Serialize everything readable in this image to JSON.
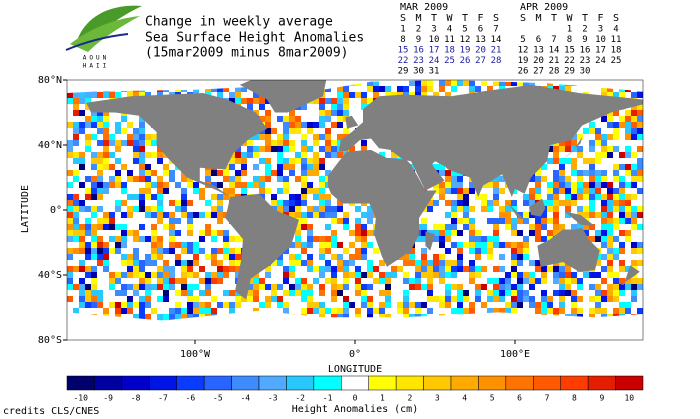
{
  "header": {
    "logo_lines": [
      "AOUN",
      "HAII"
    ],
    "title_lines": [
      "Change in weekly average",
      "Sea Surface Height Anomalies",
      "(15mar2009 minus 8mar2009)"
    ]
  },
  "calendars": [
    {
      "title": "MAR 2009",
      "weekdays": [
        "S",
        "M",
        "T",
        "W",
        "T",
        "F",
        "S"
      ],
      "highlight_rows": [
        2,
        3
      ],
      "highlight_color": "#1a1aa0",
      "weeks": [
        [
          "1",
          "2",
          "3",
          "4",
          "5",
          "6",
          "7"
        ],
        [
          "8",
          "9",
          "10",
          "11",
          "12",
          "13",
          "14"
        ],
        [
          "15",
          "16",
          "17",
          "18",
          "19",
          "20",
          "21"
        ],
        [
          "22",
          "23",
          "24",
          "25",
          "26",
          "27",
          "28"
        ],
        [
          "29",
          "30",
          "31",
          null,
          null,
          null,
          null
        ]
      ]
    },
    {
      "title": "APR 2009",
      "weekdays": [
        "S",
        "M",
        "T",
        "W",
        "T",
        "F",
        "S"
      ],
      "highlight_rows": [],
      "highlight_color": "#1a1aa0",
      "weeks": [
        [
          null,
          null,
          null,
          "1",
          "2",
          "3",
          "4"
        ],
        [
          "5",
          "6",
          "7",
          "8",
          "9",
          "10",
          "11"
        ],
        [
          "12",
          "13",
          "14",
          "15",
          "16",
          "17",
          "18"
        ],
        [
          "19",
          "20",
          "21",
          "22",
          "23",
          "24",
          "25"
        ],
        [
          "26",
          "27",
          "28",
          "29",
          "30",
          null,
          null
        ]
      ]
    }
  ],
  "map": {
    "xlabel": "LONGITUDE",
    "ylabel": "LATITUDE",
    "xlim": [
      -180,
      180
    ],
    "ylim": [
      -80,
      80
    ],
    "xticks": [
      {
        "value": -100,
        "label": "100°W"
      },
      {
        "value": 0,
        "label": "0°"
      },
      {
        "value": 100,
        "label": "100°E"
      }
    ],
    "yticks": [
      {
        "value": 80,
        "label": "80°N"
      },
      {
        "value": 40,
        "label": "40°N"
      },
      {
        "value": 0,
        "label": "0°"
      },
      {
        "value": -40,
        "label": "40°S"
      },
      {
        "value": -80,
        "label": "80°S"
      }
    ],
    "land_color": "#808080",
    "ice_color": "#ffffff"
  },
  "colorbar": {
    "label": "Height Anomalies (cm)",
    "values": [
      -10,
      -9,
      -8,
      -7,
      -6,
      -5,
      -4,
      -3,
      -2,
      -1,
      0,
      1,
      2,
      3,
      4,
      5,
      6,
      7,
      8,
      9,
      10
    ],
    "colors": [
      "#00006e",
      "#0000a0",
      "#0000c8",
      "#0014e6",
      "#0a3cff",
      "#2864ff",
      "#3c8cff",
      "#50aaff",
      "#28c8ff",
      "#00ffff",
      "#ffffff",
      "#ffff00",
      "#ffe600",
      "#ffc800",
      "#ffaa00",
      "#ff9100",
      "#ff7300",
      "#ff5a00",
      "#ff3c00",
      "#e61e00",
      "#c80000"
    ]
  },
  "credits": "credits CLS/CNES"
}
